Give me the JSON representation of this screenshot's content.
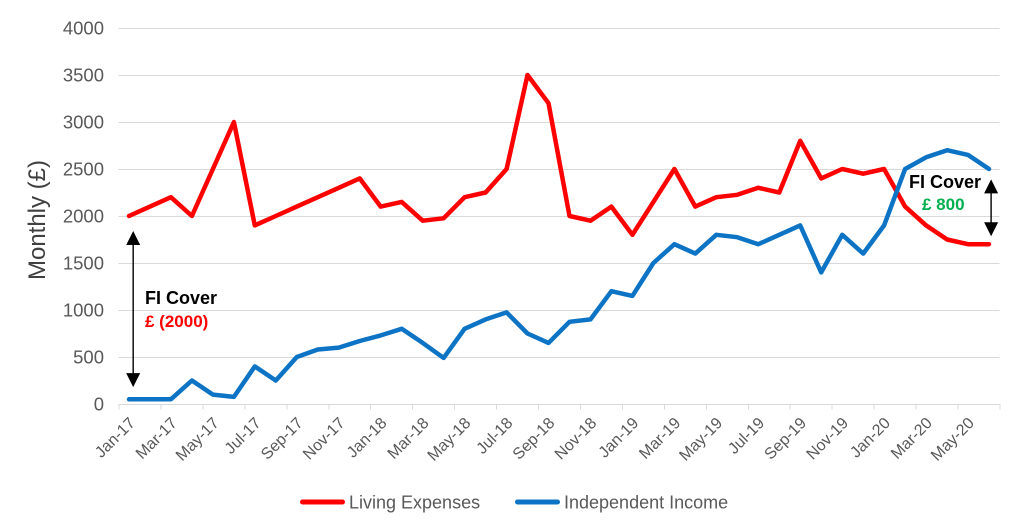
{
  "chart_data": {
    "type": "line",
    "title": "",
    "xlabel": "",
    "ylabel": "Monthly (£)",
    "ylim": [
      0,
      4000
    ],
    "ytick_step": 500,
    "ytick_labels": [
      "0",
      "500",
      "1000",
      "1500",
      "2000",
      "2500",
      "3000",
      "3500",
      "4000"
    ],
    "xtick_every": 2,
    "grid": "horizontal",
    "legend_position": "bottom",
    "x": [
      "Jan-17",
      "Feb-17",
      "Mar-17",
      "Apr-17",
      "May-17",
      "Jun-17",
      "Jul-17",
      "Aug-17",
      "Sep-17",
      "Oct-17",
      "Nov-17",
      "Dec-17",
      "Jan-18",
      "Feb-18",
      "Mar-18",
      "Apr-18",
      "May-18",
      "Jun-18",
      "Jul-18",
      "Aug-18",
      "Sep-18",
      "Oct-18",
      "Nov-18",
      "Dec-18",
      "Jan-19",
      "Feb-19",
      "Mar-19",
      "Apr-19",
      "May-19",
      "Jun-19",
      "Jul-19",
      "Aug-19",
      "Sep-19",
      "Oct-19",
      "Nov-19",
      "Dec-19",
      "Jan-20",
      "Feb-20",
      "Mar-20",
      "Apr-20",
      "May-20",
      "Jun-20"
    ],
    "xtick_labels": [
      "Jan-17",
      "Mar-17",
      "May-17",
      "Jul-17",
      "Sep-17",
      "Nov-17",
      "Jan-18",
      "Mar-18",
      "May-18",
      "Jul-18",
      "Sep-18",
      "Nov-18",
      "Jan-19",
      "Mar-19",
      "May-19",
      "Jul-19",
      "Sep-19",
      "Nov-19",
      "Jan-20",
      "Mar-20",
      "May-20"
    ],
    "series": [
      {
        "name": "Living Expenses",
        "color": "#FF0000",
        "values": [
          2000,
          2100,
          2200,
          2000,
          2500,
          3000,
          1900,
          2000,
          2100,
          2200,
          2300,
          2400,
          2100,
          2150,
          1950,
          1975,
          2200,
          2250,
          2500,
          3500,
          3200,
          2000,
          1950,
          2100,
          1800,
          2150,
          2500,
          2100,
          2200,
          2225,
          2300,
          2250,
          2800,
          2400,
          2500,
          2450,
          2500,
          2100,
          1900,
          1750,
          1700,
          1700
        ]
      },
      {
        "name": "Independent Income",
        "color": "#0D74C5",
        "values": [
          50,
          50,
          50,
          250,
          100,
          75,
          400,
          250,
          500,
          580,
          600,
          670,
          730,
          800,
          650,
          490,
          800,
          900,
          975,
          750,
          650,
          875,
          900,
          1200,
          1150,
          1500,
          1700,
          1600,
          1800,
          1775,
          1700,
          1800,
          1900,
          1400,
          1800,
          1600,
          1900,
          2500,
          2625,
          2700,
          2650,
          2500
        ]
      }
    ],
    "annotations": [
      {
        "id": "fi-cover-left",
        "label": "FI Cover",
        "value_label": "£ (2000)",
        "value_color": "#FF0000",
        "arrow": {
          "month_index": 0.2,
          "value_top": 1840,
          "value_bottom": 180
        }
      },
      {
        "id": "fi-cover-right",
        "label": "FI Cover",
        "value_label": "£ 800",
        "value_color": "#00B050",
        "arrow": {
          "month_index": 41.1,
          "value_top": 2390,
          "value_bottom": 1785
        }
      }
    ]
  }
}
